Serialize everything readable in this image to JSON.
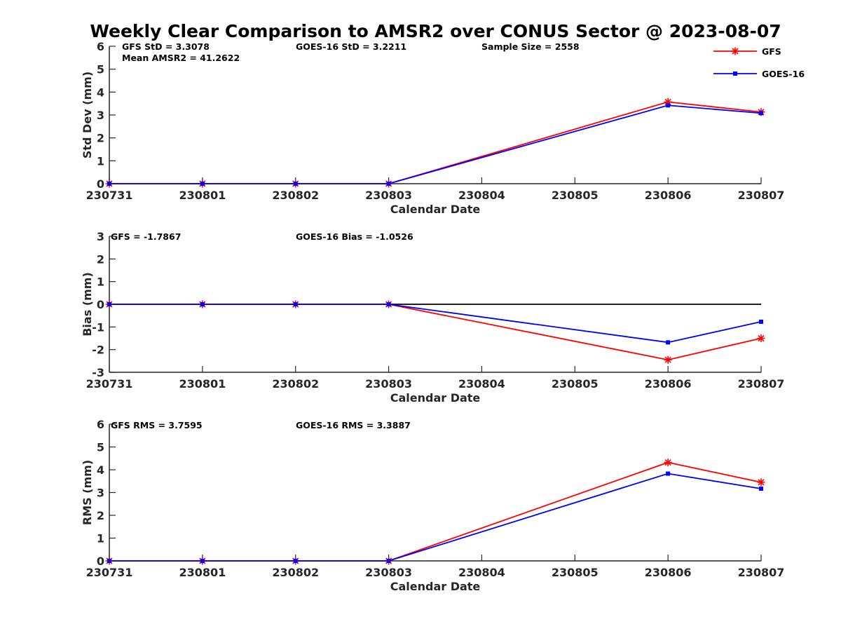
{
  "title": "Weekly Clear Comparison to AMSR2 over CONUS Sector @ 2023-08-07",
  "colors": {
    "gfs": "#ff0000",
    "goes": "#0000ff",
    "axis": "#262626",
    "zero_line": "#000000"
  },
  "legend": {
    "location": "top-right",
    "entries": [
      "GFS",
      "GOES-16"
    ]
  },
  "chart_data": [
    {
      "type": "line",
      "x": [
        "230731",
        "230801",
        "230802",
        "230803",
        "230804",
        "230805",
        "230806",
        "230807"
      ],
      "xlabel": "Calendar Date",
      "ylabel": "Std Dev (mm)",
      "ylim": [
        0,
        6
      ],
      "yticks": [
        "0",
        "1",
        "2",
        "3",
        "4",
        "5",
        "6"
      ],
      "zero_line": false,
      "annotations": {
        "gfs": "GFS StD = 3.3078",
        "goes": "GOES-16 StD = 3.2211",
        "sample": "Sample Size = 2558",
        "mean": "Mean AMSR2 = 41.2622"
      },
      "series": [
        {
          "name": "GFS",
          "marker": "asterisk",
          "points": [
            [
              "230731",
              0
            ],
            [
              "230801",
              0
            ],
            [
              "230802",
              0
            ],
            [
              "230803",
              0
            ],
            [
              "230806",
              3.57
            ],
            [
              "230807",
              3.13
            ]
          ]
        },
        {
          "name": "GOES-16",
          "marker": "square",
          "points": [
            [
              "230731",
              0
            ],
            [
              "230801",
              0
            ],
            [
              "230802",
              0
            ],
            [
              "230803",
              0
            ],
            [
              "230806",
              3.42
            ],
            [
              "230807",
              3.08
            ]
          ]
        }
      ]
    },
    {
      "type": "line",
      "x": [
        "230731",
        "230801",
        "230802",
        "230803",
        "230804",
        "230805",
        "230806",
        "230807"
      ],
      "xlabel": "Calendar Date",
      "ylabel": "Bias (mm)",
      "ylim": [
        -3,
        3
      ],
      "yticks": [
        "-3",
        "-2",
        "-1",
        "0",
        "1",
        "2",
        "3"
      ],
      "zero_line": true,
      "annotations": {
        "gfs": "GFS = -1.7867",
        "goes": "GOES-16 Bias  = -1.0526"
      },
      "series": [
        {
          "name": "GFS",
          "marker": "asterisk",
          "points": [
            [
              "230731",
              0
            ],
            [
              "230801",
              0
            ],
            [
              "230802",
              0
            ],
            [
              "230803",
              0
            ],
            [
              "230806",
              -2.45
            ],
            [
              "230807",
              -1.5
            ]
          ]
        },
        {
          "name": "GOES-16",
          "marker": "square",
          "points": [
            [
              "230731",
              0
            ],
            [
              "230801",
              0
            ],
            [
              "230802",
              0
            ],
            [
              "230803",
              0
            ],
            [
              "230806",
              -1.68
            ],
            [
              "230807",
              -0.77
            ]
          ]
        }
      ]
    },
    {
      "type": "line",
      "x": [
        "230731",
        "230801",
        "230802",
        "230803",
        "230804",
        "230805",
        "230806",
        "230807"
      ],
      "xlabel": "Calendar Date",
      "ylabel": "RMS (mm)",
      "ylim": [
        0,
        6
      ],
      "yticks": [
        "0",
        "1",
        "2",
        "3",
        "4",
        "5",
        "6"
      ],
      "zero_line": false,
      "annotations": {
        "gfs": "GFS RMS = 3.7595",
        "goes": "GOES-16 RMS = 3.3887"
      },
      "series": [
        {
          "name": "GFS",
          "marker": "asterisk",
          "points": [
            [
              "230731",
              0
            ],
            [
              "230801",
              0
            ],
            [
              "230802",
              0
            ],
            [
              "230803",
              0
            ],
            [
              "230806",
              4.32
            ],
            [
              "230807",
              3.45
            ]
          ]
        },
        {
          "name": "GOES-16",
          "marker": "square",
          "points": [
            [
              "230731",
              0
            ],
            [
              "230801",
              0
            ],
            [
              "230802",
              0
            ],
            [
              "230803",
              0
            ],
            [
              "230806",
              3.83
            ],
            [
              "230807",
              3.17
            ]
          ]
        }
      ]
    }
  ]
}
